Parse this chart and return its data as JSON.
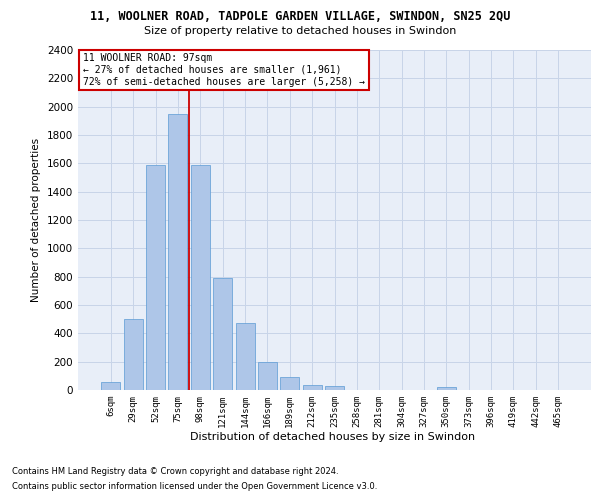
{
  "title": "11, WOOLNER ROAD, TADPOLE GARDEN VILLAGE, SWINDON, SN25 2QU",
  "subtitle": "Size of property relative to detached houses in Swindon",
  "xlabel": "Distribution of detached houses by size in Swindon",
  "ylabel": "Number of detached properties",
  "categories": [
    "6sqm",
    "29sqm",
    "52sqm",
    "75sqm",
    "98sqm",
    "121sqm",
    "144sqm",
    "166sqm",
    "189sqm",
    "212sqm",
    "235sqm",
    "258sqm",
    "281sqm",
    "304sqm",
    "327sqm",
    "350sqm",
    "373sqm",
    "396sqm",
    "419sqm",
    "442sqm",
    "465sqm"
  ],
  "bar_values": [
    60,
    500,
    1590,
    1950,
    1590,
    790,
    470,
    195,
    90,
    35,
    28,
    0,
    0,
    0,
    0,
    20,
    0,
    0,
    0,
    0,
    0
  ],
  "bar_color": "#aec6e8",
  "bar_edge_color": "#5b9bd5",
  "vline_position": 4.0,
  "ylim_max": 2400,
  "yticks": [
    0,
    200,
    400,
    600,
    800,
    1000,
    1200,
    1400,
    1600,
    1800,
    2000,
    2200,
    2400
  ],
  "annotation_title": "11 WOOLNER ROAD: 97sqm",
  "annotation_line1": "← 27% of detached houses are smaller (1,961)",
  "annotation_line2": "72% of semi-detached houses are larger (5,258) →",
  "vline_color": "#cc0000",
  "grid_color": "#c8d4e8",
  "bg_color": "#e8eef8",
  "footer1": "Contains HM Land Registry data © Crown copyright and database right 2024.",
  "footer2": "Contains public sector information licensed under the Open Government Licence v3.0."
}
